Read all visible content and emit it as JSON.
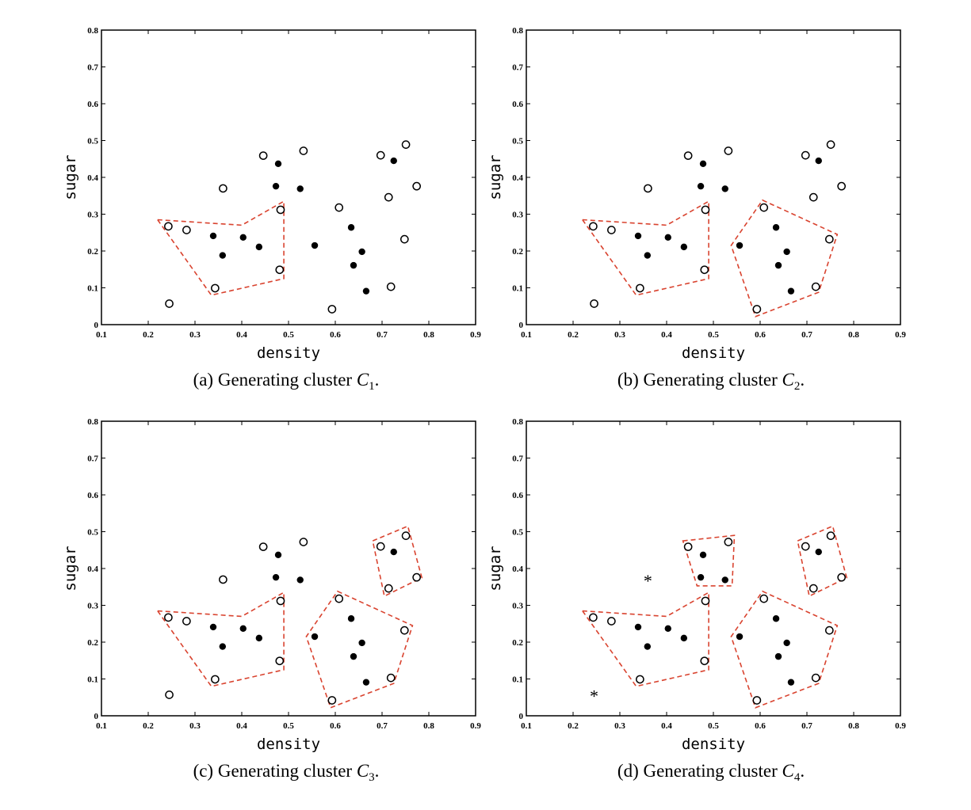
{
  "chart_data": [
    {
      "type": "scatter",
      "caption": {
        "prefix": "(a) Generating cluster ",
        "var": "C",
        "sub": "1",
        "suffix": "."
      },
      "xlabel": "density",
      "ylabel": "sugar",
      "xlim": [
        0.1,
        0.9
      ],
      "ylim": [
        0,
        0.8
      ],
      "xticks": [
        "0.1",
        "0.2",
        "0.3",
        "0.4",
        "0.5",
        "0.6",
        "0.7",
        "0.8",
        "0.9"
      ],
      "yticks": [
        "0",
        "0.1",
        "0.2",
        "0.3",
        "0.4",
        "0.5",
        "0.6",
        "0.7",
        "0.8"
      ],
      "points": [
        {
          "x": 0.697,
          "y": 0.46,
          "m": "open"
        },
        {
          "x": 0.774,
          "y": 0.376,
          "m": "open"
        },
        {
          "x": 0.634,
          "y": 0.264,
          "m": "filled"
        },
        {
          "x": 0.608,
          "y": 0.318,
          "m": "open"
        },
        {
          "x": 0.556,
          "y": 0.215,
          "m": "filled"
        },
        {
          "x": 0.403,
          "y": 0.237,
          "m": "filled"
        },
        {
          "x": 0.481,
          "y": 0.149,
          "m": "open"
        },
        {
          "x": 0.437,
          "y": 0.211,
          "m": "filled"
        },
        {
          "x": 0.666,
          "y": 0.091,
          "m": "filled"
        },
        {
          "x": 0.243,
          "y": 0.267,
          "m": "open"
        },
        {
          "x": 0.245,
          "y": 0.057,
          "m": "open"
        },
        {
          "x": 0.343,
          "y": 0.099,
          "m": "open"
        },
        {
          "x": 0.639,
          "y": 0.161,
          "m": "filled"
        },
        {
          "x": 0.657,
          "y": 0.198,
          "m": "filled"
        },
        {
          "x": 0.36,
          "y": 0.37,
          "m": "open"
        },
        {
          "x": 0.593,
          "y": 0.042,
          "m": "open"
        },
        {
          "x": 0.719,
          "y": 0.103,
          "m": "open"
        },
        {
          "x": 0.359,
          "y": 0.188,
          "m": "filled"
        },
        {
          "x": 0.339,
          "y": 0.241,
          "m": "filled"
        },
        {
          "x": 0.282,
          "y": 0.257,
          "m": "open"
        },
        {
          "x": 0.748,
          "y": 0.232,
          "m": "open"
        },
        {
          "x": 0.714,
          "y": 0.346,
          "m": "open"
        },
        {
          "x": 0.483,
          "y": 0.312,
          "m": "open"
        },
        {
          "x": 0.478,
          "y": 0.437,
          "m": "filled"
        },
        {
          "x": 0.525,
          "y": 0.369,
          "m": "filled"
        },
        {
          "x": 0.751,
          "y": 0.489,
          "m": "open"
        },
        {
          "x": 0.532,
          "y": 0.472,
          "m": "open"
        },
        {
          "x": 0.473,
          "y": 0.376,
          "m": "filled"
        },
        {
          "x": 0.725,
          "y": 0.445,
          "m": "filled"
        },
        {
          "x": 0.446,
          "y": 0.459,
          "m": "open"
        }
      ],
      "clusters": [
        [
          [
            0.22,
            0.285
          ],
          [
            0.4,
            0.27
          ],
          [
            0.49,
            0.335
          ],
          [
            0.49,
            0.125
          ],
          [
            0.335,
            0.08
          ]
        ]
      ]
    },
    {
      "type": "scatter",
      "caption": {
        "prefix": "(b) Generating cluster ",
        "var": "C",
        "sub": "2",
        "suffix": "."
      },
      "xlabel": "density",
      "ylabel": "sugar",
      "xlim": [
        0.1,
        0.9
      ],
      "ylim": [
        0,
        0.8
      ],
      "xticks": [
        "0.1",
        "0.2",
        "0.3",
        "0.4",
        "0.5",
        "0.6",
        "0.7",
        "0.8",
        "0.9"
      ],
      "yticks": [
        "0",
        "0.1",
        "0.2",
        "0.3",
        "0.4",
        "0.5",
        "0.6",
        "0.7",
        "0.8"
      ],
      "points": [
        {
          "x": 0.697,
          "y": 0.46,
          "m": "open"
        },
        {
          "x": 0.774,
          "y": 0.376,
          "m": "open"
        },
        {
          "x": 0.634,
          "y": 0.264,
          "m": "filled"
        },
        {
          "x": 0.608,
          "y": 0.318,
          "m": "open"
        },
        {
          "x": 0.556,
          "y": 0.215,
          "m": "filled"
        },
        {
          "x": 0.403,
          "y": 0.237,
          "m": "filled"
        },
        {
          "x": 0.481,
          "y": 0.149,
          "m": "open"
        },
        {
          "x": 0.437,
          "y": 0.211,
          "m": "filled"
        },
        {
          "x": 0.666,
          "y": 0.091,
          "m": "filled"
        },
        {
          "x": 0.243,
          "y": 0.267,
          "m": "open"
        },
        {
          "x": 0.245,
          "y": 0.057,
          "m": "open"
        },
        {
          "x": 0.343,
          "y": 0.099,
          "m": "open"
        },
        {
          "x": 0.639,
          "y": 0.161,
          "m": "filled"
        },
        {
          "x": 0.657,
          "y": 0.198,
          "m": "filled"
        },
        {
          "x": 0.36,
          "y": 0.37,
          "m": "open"
        },
        {
          "x": 0.593,
          "y": 0.042,
          "m": "open"
        },
        {
          "x": 0.719,
          "y": 0.103,
          "m": "open"
        },
        {
          "x": 0.359,
          "y": 0.188,
          "m": "filled"
        },
        {
          "x": 0.339,
          "y": 0.241,
          "m": "filled"
        },
        {
          "x": 0.282,
          "y": 0.257,
          "m": "open"
        },
        {
          "x": 0.748,
          "y": 0.232,
          "m": "open"
        },
        {
          "x": 0.714,
          "y": 0.346,
          "m": "open"
        },
        {
          "x": 0.483,
          "y": 0.312,
          "m": "open"
        },
        {
          "x": 0.478,
          "y": 0.437,
          "m": "filled"
        },
        {
          "x": 0.525,
          "y": 0.369,
          "m": "filled"
        },
        {
          "x": 0.751,
          "y": 0.489,
          "m": "open"
        },
        {
          "x": 0.532,
          "y": 0.472,
          "m": "open"
        },
        {
          "x": 0.473,
          "y": 0.376,
          "m": "filled"
        },
        {
          "x": 0.725,
          "y": 0.445,
          "m": "filled"
        },
        {
          "x": 0.446,
          "y": 0.459,
          "m": "open"
        }
      ],
      "clusters": [
        [
          [
            0.22,
            0.285
          ],
          [
            0.4,
            0.27
          ],
          [
            0.49,
            0.335
          ],
          [
            0.49,
            0.125
          ],
          [
            0.335,
            0.08
          ]
        ],
        [
          [
            0.605,
            0.338
          ],
          [
            0.765,
            0.245
          ],
          [
            0.725,
            0.088
          ],
          [
            0.59,
            0.022
          ],
          [
            0.538,
            0.215
          ]
        ]
      ]
    },
    {
      "type": "scatter",
      "caption": {
        "prefix": "(c) Generating cluster ",
        "var": "C",
        "sub": "3",
        "suffix": "."
      },
      "xlabel": "density",
      "ylabel": "sugar",
      "xlim": [
        0.1,
        0.9
      ],
      "ylim": [
        0,
        0.8
      ],
      "xticks": [
        "0.1",
        "0.2",
        "0.3",
        "0.4",
        "0.5",
        "0.6",
        "0.7",
        "0.8",
        "0.9"
      ],
      "yticks": [
        "0",
        "0.1",
        "0.2",
        "0.3",
        "0.4",
        "0.5",
        "0.6",
        "0.7",
        "0.8"
      ],
      "points": [
        {
          "x": 0.697,
          "y": 0.46,
          "m": "open"
        },
        {
          "x": 0.774,
          "y": 0.376,
          "m": "open"
        },
        {
          "x": 0.634,
          "y": 0.264,
          "m": "filled"
        },
        {
          "x": 0.608,
          "y": 0.318,
          "m": "open"
        },
        {
          "x": 0.556,
          "y": 0.215,
          "m": "filled"
        },
        {
          "x": 0.403,
          "y": 0.237,
          "m": "filled"
        },
        {
          "x": 0.481,
          "y": 0.149,
          "m": "open"
        },
        {
          "x": 0.437,
          "y": 0.211,
          "m": "filled"
        },
        {
          "x": 0.666,
          "y": 0.091,
          "m": "filled"
        },
        {
          "x": 0.243,
          "y": 0.267,
          "m": "open"
        },
        {
          "x": 0.245,
          "y": 0.057,
          "m": "open"
        },
        {
          "x": 0.343,
          "y": 0.099,
          "m": "open"
        },
        {
          "x": 0.639,
          "y": 0.161,
          "m": "filled"
        },
        {
          "x": 0.657,
          "y": 0.198,
          "m": "filled"
        },
        {
          "x": 0.36,
          "y": 0.37,
          "m": "open"
        },
        {
          "x": 0.593,
          "y": 0.042,
          "m": "open"
        },
        {
          "x": 0.719,
          "y": 0.103,
          "m": "open"
        },
        {
          "x": 0.359,
          "y": 0.188,
          "m": "filled"
        },
        {
          "x": 0.339,
          "y": 0.241,
          "m": "filled"
        },
        {
          "x": 0.282,
          "y": 0.257,
          "m": "open"
        },
        {
          "x": 0.748,
          "y": 0.232,
          "m": "open"
        },
        {
          "x": 0.714,
          "y": 0.346,
          "m": "open"
        },
        {
          "x": 0.483,
          "y": 0.312,
          "m": "open"
        },
        {
          "x": 0.478,
          "y": 0.437,
          "m": "filled"
        },
        {
          "x": 0.525,
          "y": 0.369,
          "m": "filled"
        },
        {
          "x": 0.751,
          "y": 0.489,
          "m": "open"
        },
        {
          "x": 0.532,
          "y": 0.472,
          "m": "open"
        },
        {
          "x": 0.473,
          "y": 0.376,
          "m": "filled"
        },
        {
          "x": 0.725,
          "y": 0.445,
          "m": "filled"
        },
        {
          "x": 0.446,
          "y": 0.459,
          "m": "open"
        }
      ],
      "clusters": [
        [
          [
            0.22,
            0.285
          ],
          [
            0.4,
            0.27
          ],
          [
            0.49,
            0.335
          ],
          [
            0.49,
            0.125
          ],
          [
            0.335,
            0.08
          ]
        ],
        [
          [
            0.605,
            0.338
          ],
          [
            0.765,
            0.245
          ],
          [
            0.725,
            0.088
          ],
          [
            0.59,
            0.022
          ],
          [
            0.538,
            0.215
          ]
        ],
        [
          [
            0.68,
            0.475
          ],
          [
            0.755,
            0.515
          ],
          [
            0.785,
            0.375
          ],
          [
            0.705,
            0.325
          ]
        ]
      ]
    },
    {
      "type": "scatter",
      "caption": {
        "prefix": "(d) Generating cluster ",
        "var": "C",
        "sub": "4",
        "suffix": "."
      },
      "xlabel": "density",
      "ylabel": "sugar",
      "xlim": [
        0.1,
        0.9
      ],
      "ylim": [
        0,
        0.8
      ],
      "xticks": [
        "0.1",
        "0.2",
        "0.3",
        "0.4",
        "0.5",
        "0.6",
        "0.7",
        "0.8",
        "0.9"
      ],
      "yticks": [
        "0",
        "0.1",
        "0.2",
        "0.3",
        "0.4",
        "0.5",
        "0.6",
        "0.7",
        "0.8"
      ],
      "points": [
        {
          "x": 0.697,
          "y": 0.46,
          "m": "open"
        },
        {
          "x": 0.774,
          "y": 0.376,
          "m": "open"
        },
        {
          "x": 0.634,
          "y": 0.264,
          "m": "filled"
        },
        {
          "x": 0.608,
          "y": 0.318,
          "m": "open"
        },
        {
          "x": 0.556,
          "y": 0.215,
          "m": "filled"
        },
        {
          "x": 0.403,
          "y": 0.237,
          "m": "filled"
        },
        {
          "x": 0.481,
          "y": 0.149,
          "m": "open"
        },
        {
          "x": 0.437,
          "y": 0.211,
          "m": "filled"
        },
        {
          "x": 0.666,
          "y": 0.091,
          "m": "filled"
        },
        {
          "x": 0.243,
          "y": 0.267,
          "m": "open"
        },
        {
          "x": 0.245,
          "y": 0.057,
          "m": "star"
        },
        {
          "x": 0.343,
          "y": 0.099,
          "m": "open"
        },
        {
          "x": 0.639,
          "y": 0.161,
          "m": "filled"
        },
        {
          "x": 0.657,
          "y": 0.198,
          "m": "filled"
        },
        {
          "x": 0.36,
          "y": 0.37,
          "m": "star"
        },
        {
          "x": 0.593,
          "y": 0.042,
          "m": "open"
        },
        {
          "x": 0.719,
          "y": 0.103,
          "m": "open"
        },
        {
          "x": 0.359,
          "y": 0.188,
          "m": "filled"
        },
        {
          "x": 0.339,
          "y": 0.241,
          "m": "filled"
        },
        {
          "x": 0.282,
          "y": 0.257,
          "m": "open"
        },
        {
          "x": 0.748,
          "y": 0.232,
          "m": "open"
        },
        {
          "x": 0.714,
          "y": 0.346,
          "m": "open"
        },
        {
          "x": 0.483,
          "y": 0.312,
          "m": "open"
        },
        {
          "x": 0.478,
          "y": 0.437,
          "m": "filled"
        },
        {
          "x": 0.525,
          "y": 0.369,
          "m": "filled"
        },
        {
          "x": 0.751,
          "y": 0.489,
          "m": "open"
        },
        {
          "x": 0.532,
          "y": 0.472,
          "m": "open"
        },
        {
          "x": 0.473,
          "y": 0.376,
          "m": "filled"
        },
        {
          "x": 0.725,
          "y": 0.445,
          "m": "filled"
        },
        {
          "x": 0.446,
          "y": 0.459,
          "m": "open"
        }
      ],
      "clusters": [
        [
          [
            0.22,
            0.285
          ],
          [
            0.4,
            0.27
          ],
          [
            0.49,
            0.335
          ],
          [
            0.49,
            0.125
          ],
          [
            0.335,
            0.08
          ]
        ],
        [
          [
            0.605,
            0.338
          ],
          [
            0.765,
            0.245
          ],
          [
            0.725,
            0.088
          ],
          [
            0.59,
            0.022
          ],
          [
            0.538,
            0.215
          ]
        ],
        [
          [
            0.68,
            0.475
          ],
          [
            0.755,
            0.515
          ],
          [
            0.785,
            0.375
          ],
          [
            0.705,
            0.325
          ]
        ],
        [
          [
            0.435,
            0.475
          ],
          [
            0.545,
            0.49
          ],
          [
            0.54,
            0.353
          ],
          [
            0.465,
            0.353
          ]
        ]
      ]
    }
  ],
  "colors": {
    "cluster_outline": "#d9432f",
    "marker": "#000000"
  }
}
